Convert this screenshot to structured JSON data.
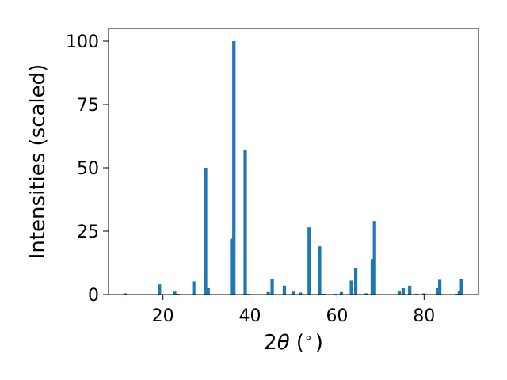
{
  "chart_data": {
    "type": "bar",
    "xlabel_prefix": "2",
    "xlabel_symbol": "θ",
    "xlabel_suffix": " (",
    "xlabel_unit": "∘",
    "xlabel_close": ")",
    "ylabel": "Intensities (scaled)",
    "xlim": [
      7.5,
      92.5
    ],
    "ylim": [
      0,
      105
    ],
    "x_ticks": [
      20,
      40,
      60,
      80
    ],
    "x_tick_labels": [
      "20",
      "40",
      "60",
      "80"
    ],
    "y_ticks": [
      0,
      25,
      50,
      75,
      100
    ],
    "y_tick_labels": [
      "0",
      "25",
      "50",
      "75",
      "100"
    ],
    "grid": false,
    "bar_color": "#1f77b4",
    "bars": [
      {
        "x": 11.3,
        "y": 0.5
      },
      {
        "x": 19.2,
        "y": 4.0
      },
      {
        "x": 22.7,
        "y": 1.2
      },
      {
        "x": 23.5,
        "y": 0.3
      },
      {
        "x": 27.1,
        "y": 5.2
      },
      {
        "x": 29.8,
        "y": 50.0
      },
      {
        "x": 30.4,
        "y": 2.5
      },
      {
        "x": 35.8,
        "y": 22.0
      },
      {
        "x": 36.3,
        "y": 100.0
      },
      {
        "x": 38.9,
        "y": 57.0
      },
      {
        "x": 39.5,
        "y": 0.3
      },
      {
        "x": 44.2,
        "y": 1.0
      },
      {
        "x": 45.1,
        "y": 6.0
      },
      {
        "x": 47.9,
        "y": 3.5
      },
      {
        "x": 49.9,
        "y": 1.2
      },
      {
        "x": 51.6,
        "y": 0.8
      },
      {
        "x": 53.6,
        "y": 26.5
      },
      {
        "x": 56.0,
        "y": 19.0
      },
      {
        "x": 57.0,
        "y": 0.3
      },
      {
        "x": 59.7,
        "y": 0.3
      },
      {
        "x": 61.0,
        "y": 1.0
      },
      {
        "x": 63.3,
        "y": 5.5
      },
      {
        "x": 64.3,
        "y": 10.5
      },
      {
        "x": 65.3,
        "y": 0.2
      },
      {
        "x": 66.7,
        "y": 0.5
      },
      {
        "x": 68.1,
        "y": 14.0
      },
      {
        "x": 68.6,
        "y": 29.0
      },
      {
        "x": 74.3,
        "y": 1.5
      },
      {
        "x": 75.2,
        "y": 2.5
      },
      {
        "x": 76.7,
        "y": 3.5
      },
      {
        "x": 78.3,
        "y": 0.3
      },
      {
        "x": 80.0,
        "y": 0.5
      },
      {
        "x": 83.2,
        "y": 2.5
      },
      {
        "x": 83.6,
        "y": 5.8
      },
      {
        "x": 87.4,
        "y": 0.3
      },
      {
        "x": 88.1,
        "y": 1.5
      },
      {
        "x": 88.6,
        "y": 6.0
      }
    ]
  }
}
